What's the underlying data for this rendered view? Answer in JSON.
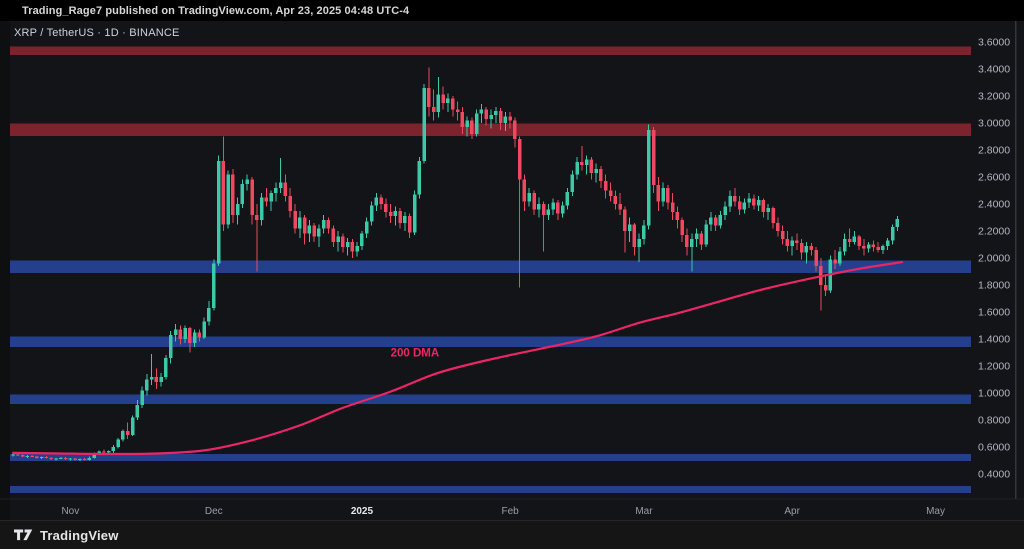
{
  "publish_bar": {
    "text": "Trading_Rage7 published on TradingView.com, Apr 23, 2025 04:48 UTC-4"
  },
  "chart_header": {
    "symbol": "XRP / TetherUS",
    "interval": "1D",
    "exchange": "BINANCE",
    "display": "XRP / TetherUS · 1D · BINANCE"
  },
  "footer": {
    "brand": "TradingView"
  },
  "colors": {
    "background": "#131418",
    "left_gutter": "#0e0f11",
    "candle_up": "#3bc9a8",
    "candle_down": "#ef4860",
    "resistance_zone": "#7d232d",
    "support_zone": "#24408d",
    "ma_line": "#ec2565",
    "price_label": "#b4b7be",
    "time_label": "#9b9ea6",
    "time_label_emphasis": "#e7e8ea",
    "axis_line": "#1e2023",
    "right_edge_line": "#35363b"
  },
  "chart_data": {
    "type": "candlestick",
    "symbol": "XRP/USDT",
    "exchange": "BINANCE",
    "interval": "1D",
    "start_date": "2024-10-20",
    "end_date": "2025-04-23",
    "ylim": [
      0.215,
      3.748
    ],
    "grid": false,
    "y_ticks": [
      {
        "label": "3.6000",
        "value": 3.6
      },
      {
        "label": "3.4000",
        "value": 3.4
      },
      {
        "label": "3.2000",
        "value": 3.2
      },
      {
        "label": "3.0000",
        "value": 3.0
      },
      {
        "label": "2.8000",
        "value": 2.8
      },
      {
        "label": "2.6000",
        "value": 2.6
      },
      {
        "label": "2.4000",
        "value": 2.4
      },
      {
        "label": "2.2000",
        "value": 2.2
      },
      {
        "label": "2.0000",
        "value": 2.0
      },
      {
        "label": "1.8000",
        "value": 1.8
      },
      {
        "label": "1.6000",
        "value": 1.6
      },
      {
        "label": "1.4000",
        "value": 1.4
      },
      {
        "label": "1.2000",
        "value": 1.2
      },
      {
        "label": "1.0000",
        "value": 1.0
      },
      {
        "label": "0.8000",
        "value": 0.8
      },
      {
        "label": "0.6000",
        "value": 0.6
      },
      {
        "label": "0.4000",
        "value": 0.4
      }
    ],
    "x_ticks": [
      {
        "label": "Nov",
        "index": 12,
        "emphasis": false
      },
      {
        "label": "Dec",
        "index": 42,
        "emphasis": false
      },
      {
        "label": "2025",
        "index": 73,
        "emphasis": true
      },
      {
        "label": "Feb",
        "index": 104,
        "emphasis": false
      },
      {
        "label": "Mar",
        "index": 132,
        "emphasis": false
      },
      {
        "label": "Apr",
        "index": 163,
        "emphasis": false
      },
      {
        "label": "May",
        "index": 193,
        "emphasis": false
      }
    ],
    "zones": {
      "resistance": [
        [
          3.505,
          3.565
        ],
        [
          2.905,
          2.995
        ]
      ],
      "support": [
        [
          1.89,
          1.98
        ],
        [
          1.34,
          1.42
        ],
        [
          0.92,
          0.99
        ],
        [
          0.495,
          0.55
        ],
        [
          0.26,
          0.31
        ]
      ]
    },
    "ma_label": "200 DMA",
    "ma_label_pos": {
      "index": 79,
      "price": 1.27
    },
    "ma_points": [
      [
        0,
        0.556
      ],
      [
        10,
        0.552
      ],
      [
        20,
        0.548
      ],
      [
        30,
        0.552
      ],
      [
        40,
        0.575
      ],
      [
        50,
        0.65
      ],
      [
        60,
        0.76
      ],
      [
        69,
        0.89
      ],
      [
        79,
        1.01
      ],
      [
        89,
        1.15
      ],
      [
        100,
        1.25
      ],
      [
        112,
        1.34
      ],
      [
        122,
        1.42
      ],
      [
        131,
        1.52
      ],
      [
        139,
        1.59
      ],
      [
        146,
        1.66
      ],
      [
        156,
        1.76
      ],
      [
        167,
        1.85
      ],
      [
        177,
        1.92
      ],
      [
        186,
        1.97
      ]
    ],
    "candles": [
      [
        0.54,
        0.55,
        0.53,
        0.545
      ],
      [
        0.545,
        0.55,
        0.535,
        0.54
      ],
      [
        0.54,
        0.545,
        0.525,
        0.53
      ],
      [
        0.53,
        0.54,
        0.52,
        0.535
      ],
      [
        0.535,
        0.54,
        0.525,
        0.53
      ],
      [
        0.53,
        0.535,
        0.515,
        0.52
      ],
      [
        0.52,
        0.53,
        0.51,
        0.525
      ],
      [
        0.525,
        0.535,
        0.515,
        0.52
      ],
      [
        0.52,
        0.525,
        0.505,
        0.51
      ],
      [
        0.51,
        0.52,
        0.5,
        0.515
      ],
      [
        0.515,
        0.525,
        0.51,
        0.52
      ],
      [
        0.52,
        0.525,
        0.505,
        0.51
      ],
      [
        0.51,
        0.52,
        0.5,
        0.515
      ],
      [
        0.515,
        0.52,
        0.5,
        0.505
      ],
      [
        0.505,
        0.515,
        0.495,
        0.51
      ],
      [
        0.51,
        0.52,
        0.5,
        0.505
      ],
      [
        0.505,
        0.53,
        0.5,
        0.52
      ],
      [
        0.52,
        0.56,
        0.515,
        0.55
      ],
      [
        0.55,
        0.575,
        0.54,
        0.565
      ],
      [
        0.565,
        0.58,
        0.55,
        0.56
      ],
      [
        0.56,
        0.575,
        0.55,
        0.57
      ],
      [
        0.57,
        0.615,
        0.555,
        0.6
      ],
      [
        0.6,
        0.665,
        0.59,
        0.655
      ],
      [
        0.655,
        0.73,
        0.64,
        0.72
      ],
      [
        0.72,
        0.78,
        0.66,
        0.69
      ],
      [
        0.69,
        0.835,
        0.68,
        0.82
      ],
      [
        0.82,
        0.95,
        0.8,
        0.91
      ],
      [
        0.91,
        1.05,
        0.89,
        1.02
      ],
      [
        1.02,
        1.14,
        0.98,
        1.1
      ],
      [
        1.1,
        1.29,
        1.06,
        1.12
      ],
      [
        1.12,
        1.18,
        1.03,
        1.08
      ],
      [
        1.08,
        1.15,
        1.05,
        1.12
      ],
      [
        1.12,
        1.28,
        1.1,
        1.26
      ],
      [
        1.26,
        1.46,
        1.22,
        1.43
      ],
      [
        1.43,
        1.51,
        1.38,
        1.47
      ],
      [
        1.47,
        1.5,
        1.36,
        1.4
      ],
      [
        1.4,
        1.5,
        1.37,
        1.48
      ],
      [
        1.48,
        1.49,
        1.3,
        1.37
      ],
      [
        1.37,
        1.47,
        1.34,
        1.45
      ],
      [
        1.45,
        1.47,
        1.38,
        1.41
      ],
      [
        1.41,
        1.56,
        1.4,
        1.53
      ],
      [
        1.53,
        1.68,
        1.5,
        1.63
      ],
      [
        1.63,
        1.99,
        1.61,
        1.96
      ],
      [
        1.96,
        2.76,
        1.94,
        2.72
      ],
      [
        2.72,
        2.9,
        2.2,
        2.25
      ],
      [
        2.25,
        2.65,
        2.22,
        2.62
      ],
      [
        2.62,
        2.66,
        2.26,
        2.32
      ],
      [
        2.32,
        2.45,
        2.25,
        2.4
      ],
      [
        2.4,
        2.58,
        2.37,
        2.55
      ],
      [
        2.55,
        2.62,
        2.5,
        2.58
      ],
      [
        2.58,
        2.6,
        2.25,
        2.32
      ],
      [
        2.32,
        2.4,
        1.9,
        2.28
      ],
      [
        2.28,
        2.48,
        2.24,
        2.45
      ],
      [
        2.45,
        2.52,
        2.38,
        2.42
      ],
      [
        2.42,
        2.5,
        2.35,
        2.48
      ],
      [
        2.48,
        2.56,
        2.42,
        2.52
      ],
      [
        2.52,
        2.74,
        2.48,
        2.56
      ],
      [
        2.56,
        2.62,
        2.42,
        2.46
      ],
      [
        2.46,
        2.52,
        2.3,
        2.35
      ],
      [
        2.35,
        2.4,
        2.18,
        2.22
      ],
      [
        2.22,
        2.35,
        2.15,
        2.3
      ],
      [
        2.3,
        2.32,
        2.1,
        2.18
      ],
      [
        2.18,
        2.28,
        2.12,
        2.24
      ],
      [
        2.24,
        2.26,
        2.12,
        2.16
      ],
      [
        2.16,
        2.25,
        2.08,
        2.22
      ],
      [
        2.22,
        2.32,
        2.18,
        2.28
      ],
      [
        2.28,
        2.3,
        2.18,
        2.22
      ],
      [
        2.22,
        2.24,
        2.08,
        2.12
      ],
      [
        2.12,
        2.2,
        2.05,
        2.16
      ],
      [
        2.16,
        2.18,
        2.04,
        2.08
      ],
      [
        2.08,
        2.15,
        2.02,
        2.12
      ],
      [
        2.12,
        2.14,
        2.0,
        2.05
      ],
      [
        2.05,
        2.12,
        2.01,
        2.09
      ],
      [
        2.09,
        2.2,
        2.06,
        2.18
      ],
      [
        2.18,
        2.3,
        2.15,
        2.27
      ],
      [
        2.27,
        2.42,
        2.24,
        2.39
      ],
      [
        2.39,
        2.48,
        2.35,
        2.45
      ],
      [
        2.45,
        2.47,
        2.36,
        2.4
      ],
      [
        2.4,
        2.44,
        2.3,
        2.34
      ],
      [
        2.34,
        2.4,
        2.26,
        2.31
      ],
      [
        2.31,
        2.38,
        2.24,
        2.35
      ],
      [
        2.35,
        2.37,
        2.22,
        2.26
      ],
      [
        2.26,
        2.34,
        2.2,
        2.31
      ],
      [
        2.31,
        2.33,
        2.15,
        2.19
      ],
      [
        2.19,
        2.5,
        2.17,
        2.47
      ],
      [
        2.47,
        2.75,
        2.44,
        2.72
      ],
      [
        2.72,
        3.29,
        2.7,
        3.26
      ],
      [
        3.26,
        3.41,
        3.05,
        3.12
      ],
      [
        3.12,
        3.25,
        3.02,
        3.08
      ],
      [
        3.08,
        3.34,
        3.04,
        3.21
      ],
      [
        3.21,
        3.27,
        3.1,
        3.15
      ],
      [
        3.15,
        3.22,
        3.08,
        3.18
      ],
      [
        3.18,
        3.2,
        3.05,
        3.1
      ],
      [
        3.1,
        3.16,
        3.02,
        3.08
      ],
      [
        3.08,
        3.12,
        2.92,
        2.97
      ],
      [
        2.97,
        3.05,
        2.9,
        3.02
      ],
      [
        3.02,
        3.04,
        2.88,
        2.92
      ],
      [
        2.92,
        3.1,
        2.9,
        3.07
      ],
      [
        3.07,
        3.14,
        3.0,
        3.1
      ],
      [
        3.1,
        3.12,
        2.98,
        3.03
      ],
      [
        3.03,
        3.1,
        2.96,
        3.06
      ],
      [
        3.06,
        3.12,
        3.0,
        3.09
      ],
      [
        3.09,
        3.11,
        2.95,
        3.0
      ],
      [
        3.0,
        3.08,
        2.94,
        3.05
      ],
      [
        3.05,
        3.08,
        2.96,
        3.02
      ],
      [
        3.02,
        3.04,
        2.82,
        2.88
      ],
      [
        2.88,
        2.9,
        1.78,
        2.58
      ],
      [
        2.58,
        2.62,
        2.35,
        2.42
      ],
      [
        2.42,
        2.52,
        2.38,
        2.48
      ],
      [
        2.48,
        2.5,
        2.32,
        2.36
      ],
      [
        2.36,
        2.45,
        2.3,
        2.4
      ],
      [
        2.4,
        2.42,
        2.05,
        2.32
      ],
      [
        2.32,
        2.4,
        2.28,
        2.36
      ],
      [
        2.36,
        2.44,
        2.32,
        2.41
      ],
      [
        2.41,
        2.43,
        2.28,
        2.33
      ],
      [
        2.33,
        2.42,
        2.3,
        2.39
      ],
      [
        2.39,
        2.52,
        2.36,
        2.49
      ],
      [
        2.49,
        2.65,
        2.46,
        2.62
      ],
      [
        2.62,
        2.75,
        2.58,
        2.71
      ],
      [
        2.71,
        2.83,
        2.65,
        2.69
      ],
      [
        2.69,
        2.76,
        2.62,
        2.73
      ],
      [
        2.73,
        2.75,
        2.58,
        2.63
      ],
      [
        2.63,
        2.7,
        2.56,
        2.66
      ],
      [
        2.66,
        2.68,
        2.52,
        2.57
      ],
      [
        2.57,
        2.62,
        2.44,
        2.5
      ],
      [
        2.5,
        2.56,
        2.42,
        2.46
      ],
      [
        2.46,
        2.5,
        2.36,
        2.4
      ],
      [
        2.4,
        2.48,
        2.32,
        2.36
      ],
      [
        2.36,
        2.38,
        2.04,
        2.2
      ],
      [
        2.2,
        2.3,
        2.12,
        2.25
      ],
      [
        2.25,
        2.26,
        2.02,
        2.08
      ],
      [
        2.08,
        2.18,
        1.97,
        2.14
      ],
      [
        2.14,
        2.28,
        2.1,
        2.24
      ],
      [
        2.24,
        2.99,
        2.21,
        2.95
      ],
      [
        2.95,
        2.97,
        2.48,
        2.54
      ],
      [
        2.54,
        2.6,
        2.35,
        2.42
      ],
      [
        2.42,
        2.56,
        2.38,
        2.52
      ],
      [
        2.52,
        2.54,
        2.36,
        2.41
      ],
      [
        2.41,
        2.48,
        2.28,
        2.34
      ],
      [
        2.34,
        2.38,
        2.22,
        2.28
      ],
      [
        2.28,
        2.3,
        2.12,
        2.17
      ],
      [
        2.17,
        2.22,
        2.02,
        2.08
      ],
      [
        2.08,
        2.18,
        1.9,
        2.14
      ],
      [
        2.14,
        2.22,
        2.08,
        2.18
      ],
      [
        2.18,
        2.2,
        2.06,
        2.1
      ],
      [
        2.1,
        2.28,
        2.08,
        2.25
      ],
      [
        2.25,
        2.34,
        2.2,
        2.3
      ],
      [
        2.3,
        2.32,
        2.2,
        2.24
      ],
      [
        2.24,
        2.35,
        2.22,
        2.32
      ],
      [
        2.32,
        2.42,
        2.28,
        2.38
      ],
      [
        2.38,
        2.5,
        2.34,
        2.46
      ],
      [
        2.46,
        2.52,
        2.38,
        2.42
      ],
      [
        2.42,
        2.46,
        2.32,
        2.36
      ],
      [
        2.36,
        2.44,
        2.33,
        2.41
      ],
      [
        2.41,
        2.48,
        2.37,
        2.44
      ],
      [
        2.44,
        2.47,
        2.36,
        2.39
      ],
      [
        2.39,
        2.46,
        2.35,
        2.43
      ],
      [
        2.43,
        2.44,
        2.3,
        2.34
      ],
      [
        2.34,
        2.4,
        2.28,
        2.37
      ],
      [
        2.37,
        2.38,
        2.22,
        2.26
      ],
      [
        2.26,
        2.3,
        2.16,
        2.2
      ],
      [
        2.2,
        2.24,
        2.1,
        2.14
      ],
      [
        2.14,
        2.2,
        2.05,
        2.09
      ],
      [
        2.09,
        2.16,
        2.02,
        2.13
      ],
      [
        2.13,
        2.18,
        2.06,
        2.11
      ],
      [
        2.11,
        2.14,
        1.99,
        2.04
      ],
      [
        2.04,
        2.12,
        1.96,
        2.09
      ],
      [
        2.09,
        2.11,
        2.02,
        2.06
      ],
      [
        2.06,
        2.08,
        1.9,
        1.94
      ],
      [
        1.94,
        2.0,
        1.61,
        1.8
      ],
      [
        1.8,
        1.88,
        1.72,
        1.76
      ],
      [
        1.76,
        2.02,
        1.74,
        1.99
      ],
      [
        1.99,
        2.06,
        1.92,
        1.96
      ],
      [
        1.96,
        2.08,
        1.94,
        2.05
      ],
      [
        2.05,
        2.18,
        2.02,
        2.14
      ],
      [
        2.14,
        2.22,
        2.08,
        2.12
      ],
      [
        2.12,
        2.2,
        2.1,
        2.16
      ],
      [
        2.16,
        2.17,
        2.06,
        2.09
      ],
      [
        2.09,
        2.14,
        2.02,
        2.07
      ],
      [
        2.07,
        2.12,
        2.04,
        2.1
      ],
      [
        2.1,
        2.13,
        2.05,
        2.08
      ],
      [
        2.08,
        2.12,
        2.04,
        2.06
      ],
      [
        2.06,
        2.1,
        2.03,
        2.09
      ],
      [
        2.09,
        2.15,
        2.06,
        2.13
      ],
      [
        2.13,
        2.25,
        2.1,
        2.23
      ],
      [
        2.23,
        2.31,
        2.2,
        2.29
      ]
    ]
  }
}
